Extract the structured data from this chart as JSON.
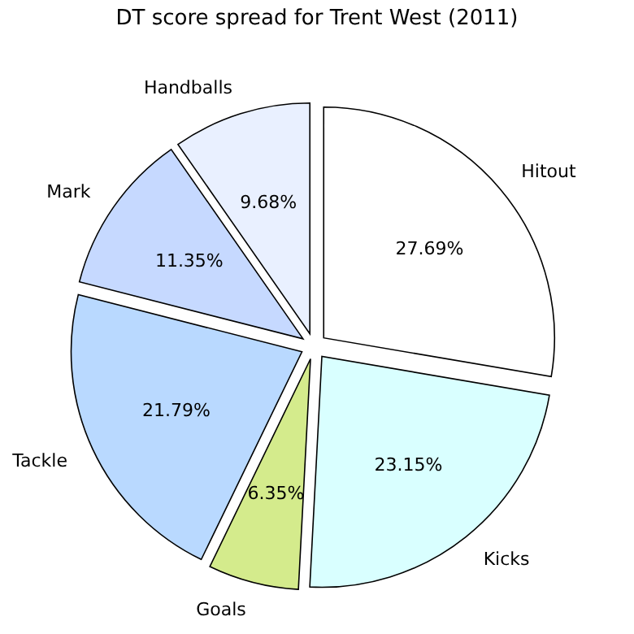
{
  "chart_data": {
    "type": "pie",
    "title": "DT score spread for Trent West (2011)",
    "categories": [
      "Hitout",
      "Kicks",
      "Goals",
      "Tackle",
      "Mark",
      "Handballs"
    ],
    "values": [
      27.69,
      23.15,
      6.35,
      21.79,
      11.35,
      9.68
    ],
    "colors": [
      "#ffffff",
      "#d9ffff",
      "#d4eb8c",
      "#b9d9ff",
      "#c6d9ff",
      "#e9f0ff"
    ],
    "value_labels": [
      "27.69%",
      "23.15%",
      "6.35%",
      "21.79%",
      "11.35%",
      "9.68%"
    ]
  }
}
